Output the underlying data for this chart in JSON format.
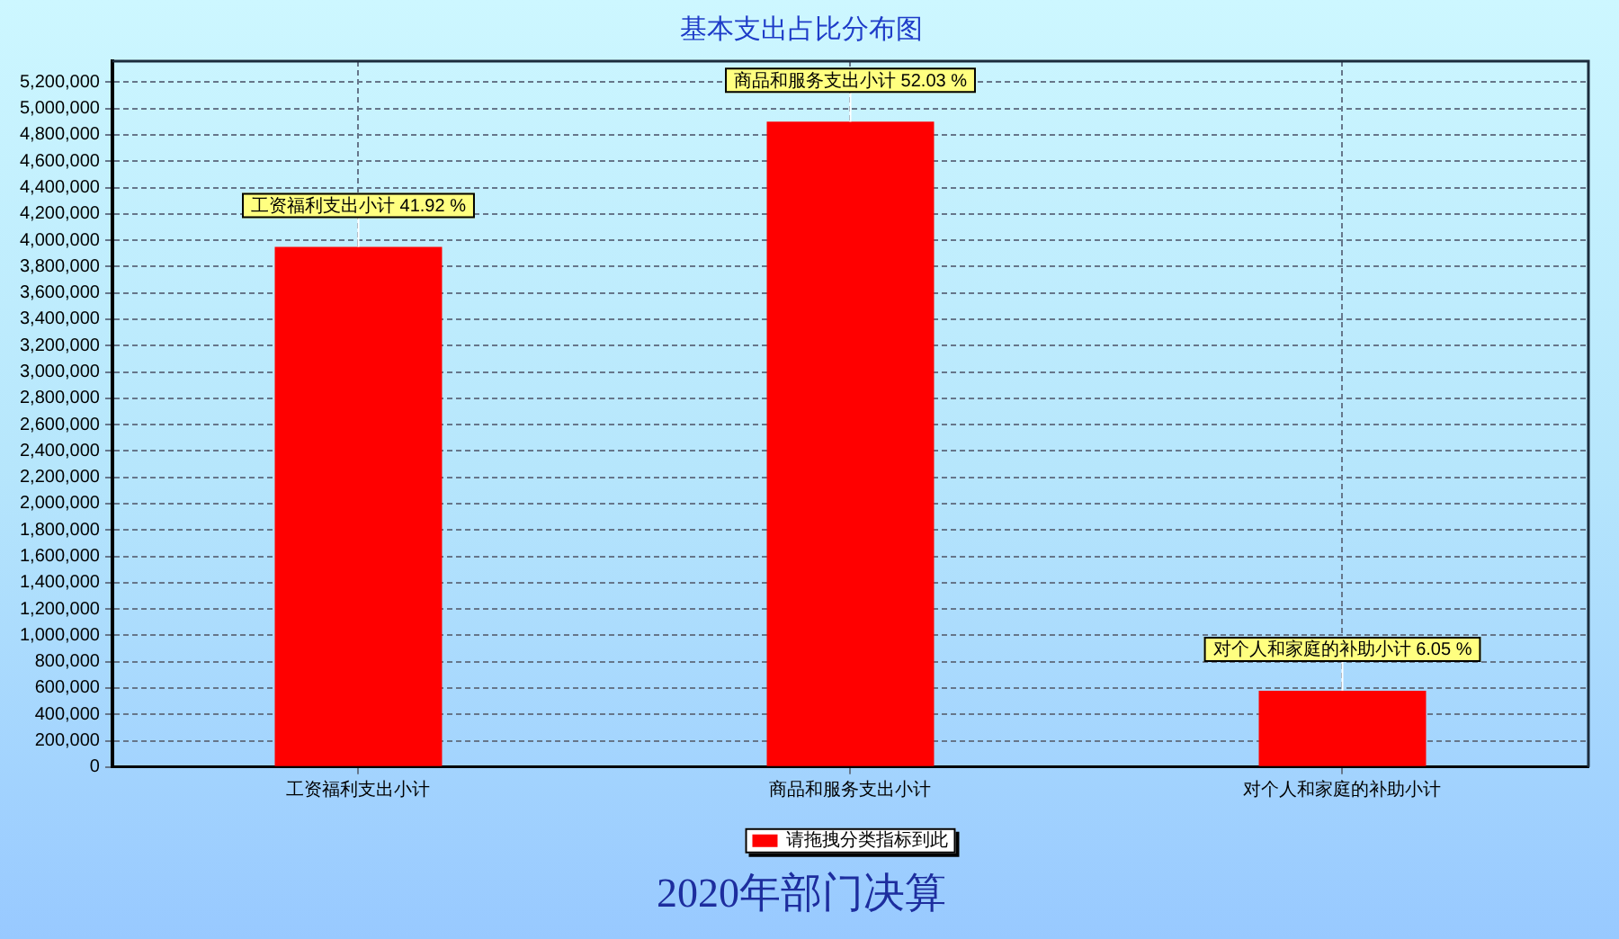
{
  "chart_data": {
    "type": "bar",
    "title": "基本支出占比分布图",
    "subtitle": "2020年部门决算",
    "categories": [
      "工资福利支出小计",
      "商品和服务支出小计",
      "对个人和家庭的补助小计"
    ],
    "series": [
      {
        "name": "请拖拽分类指标到此",
        "color": "#ff0000",
        "values": [
          3950000,
          4900000,
          580000
        ]
      }
    ],
    "ylim": [
      0,
      5360000
    ],
    "yticks": [
      0,
      {
        "value": 200000,
        "label": "200,000"
      },
      {
        "value": 400000,
        "label": "400,000"
      },
      {
        "value": 600000,
        "label": "600,000"
      },
      {
        "value": 800000,
        "label": "800,000"
      },
      {
        "value": 1000000,
        "label": "1,000,000"
      },
      {
        "value": 1200000,
        "label": "1,200,000"
      },
      {
        "value": 1400000,
        "label": "1,400,000"
      },
      {
        "value": 1600000,
        "label": "1,600,000"
      },
      {
        "value": 1800000,
        "label": "1,800,000"
      },
      {
        "value": 2000000,
        "label": "2,000,000"
      },
      {
        "value": 2200000,
        "label": "2,200,000"
      },
      {
        "value": 2400000,
        "label": "2,400,000"
      },
      {
        "value": 2600000,
        "label": "2,600,000"
      },
      {
        "value": 2800000,
        "label": "2,800,000"
      },
      {
        "value": 3000000,
        "label": "3,000,000"
      },
      {
        "value": 3200000,
        "label": "3,200,000"
      },
      {
        "value": 3400000,
        "label": "3,400,000"
      },
      {
        "value": 3600000,
        "label": "3,600,000"
      },
      {
        "value": 3800000,
        "label": "3,800,000"
      },
      {
        "value": 4000000,
        "label": "4,000,000"
      },
      {
        "value": 4200000,
        "label": "4,200,000"
      },
      {
        "value": 4400000,
        "label": "4,400,000"
      },
      {
        "value": 4600000,
        "label": "4,600,000"
      },
      {
        "value": 4800000,
        "label": "4,800,000"
      },
      {
        "value": 5000000,
        "label": "5,000,000"
      },
      {
        "value": 5200000,
        "label": "5,200,000"
      }
    ],
    "grid": true,
    "legend": "bottom",
    "annotations": [
      {
        "text": "工资福利支出小计 41.92 %",
        "x": "工资福利支出小计",
        "y": 3950000
      },
      {
        "text": "商品和服务支出小计 52.03 %",
        "x": "商品和服务支出小计",
        "y": 4900000
      },
      {
        "text": "对个人和家庭的补助小计 6.05 %",
        "x": "对个人和家庭的补助小计",
        "y": 580000
      }
    ]
  }
}
